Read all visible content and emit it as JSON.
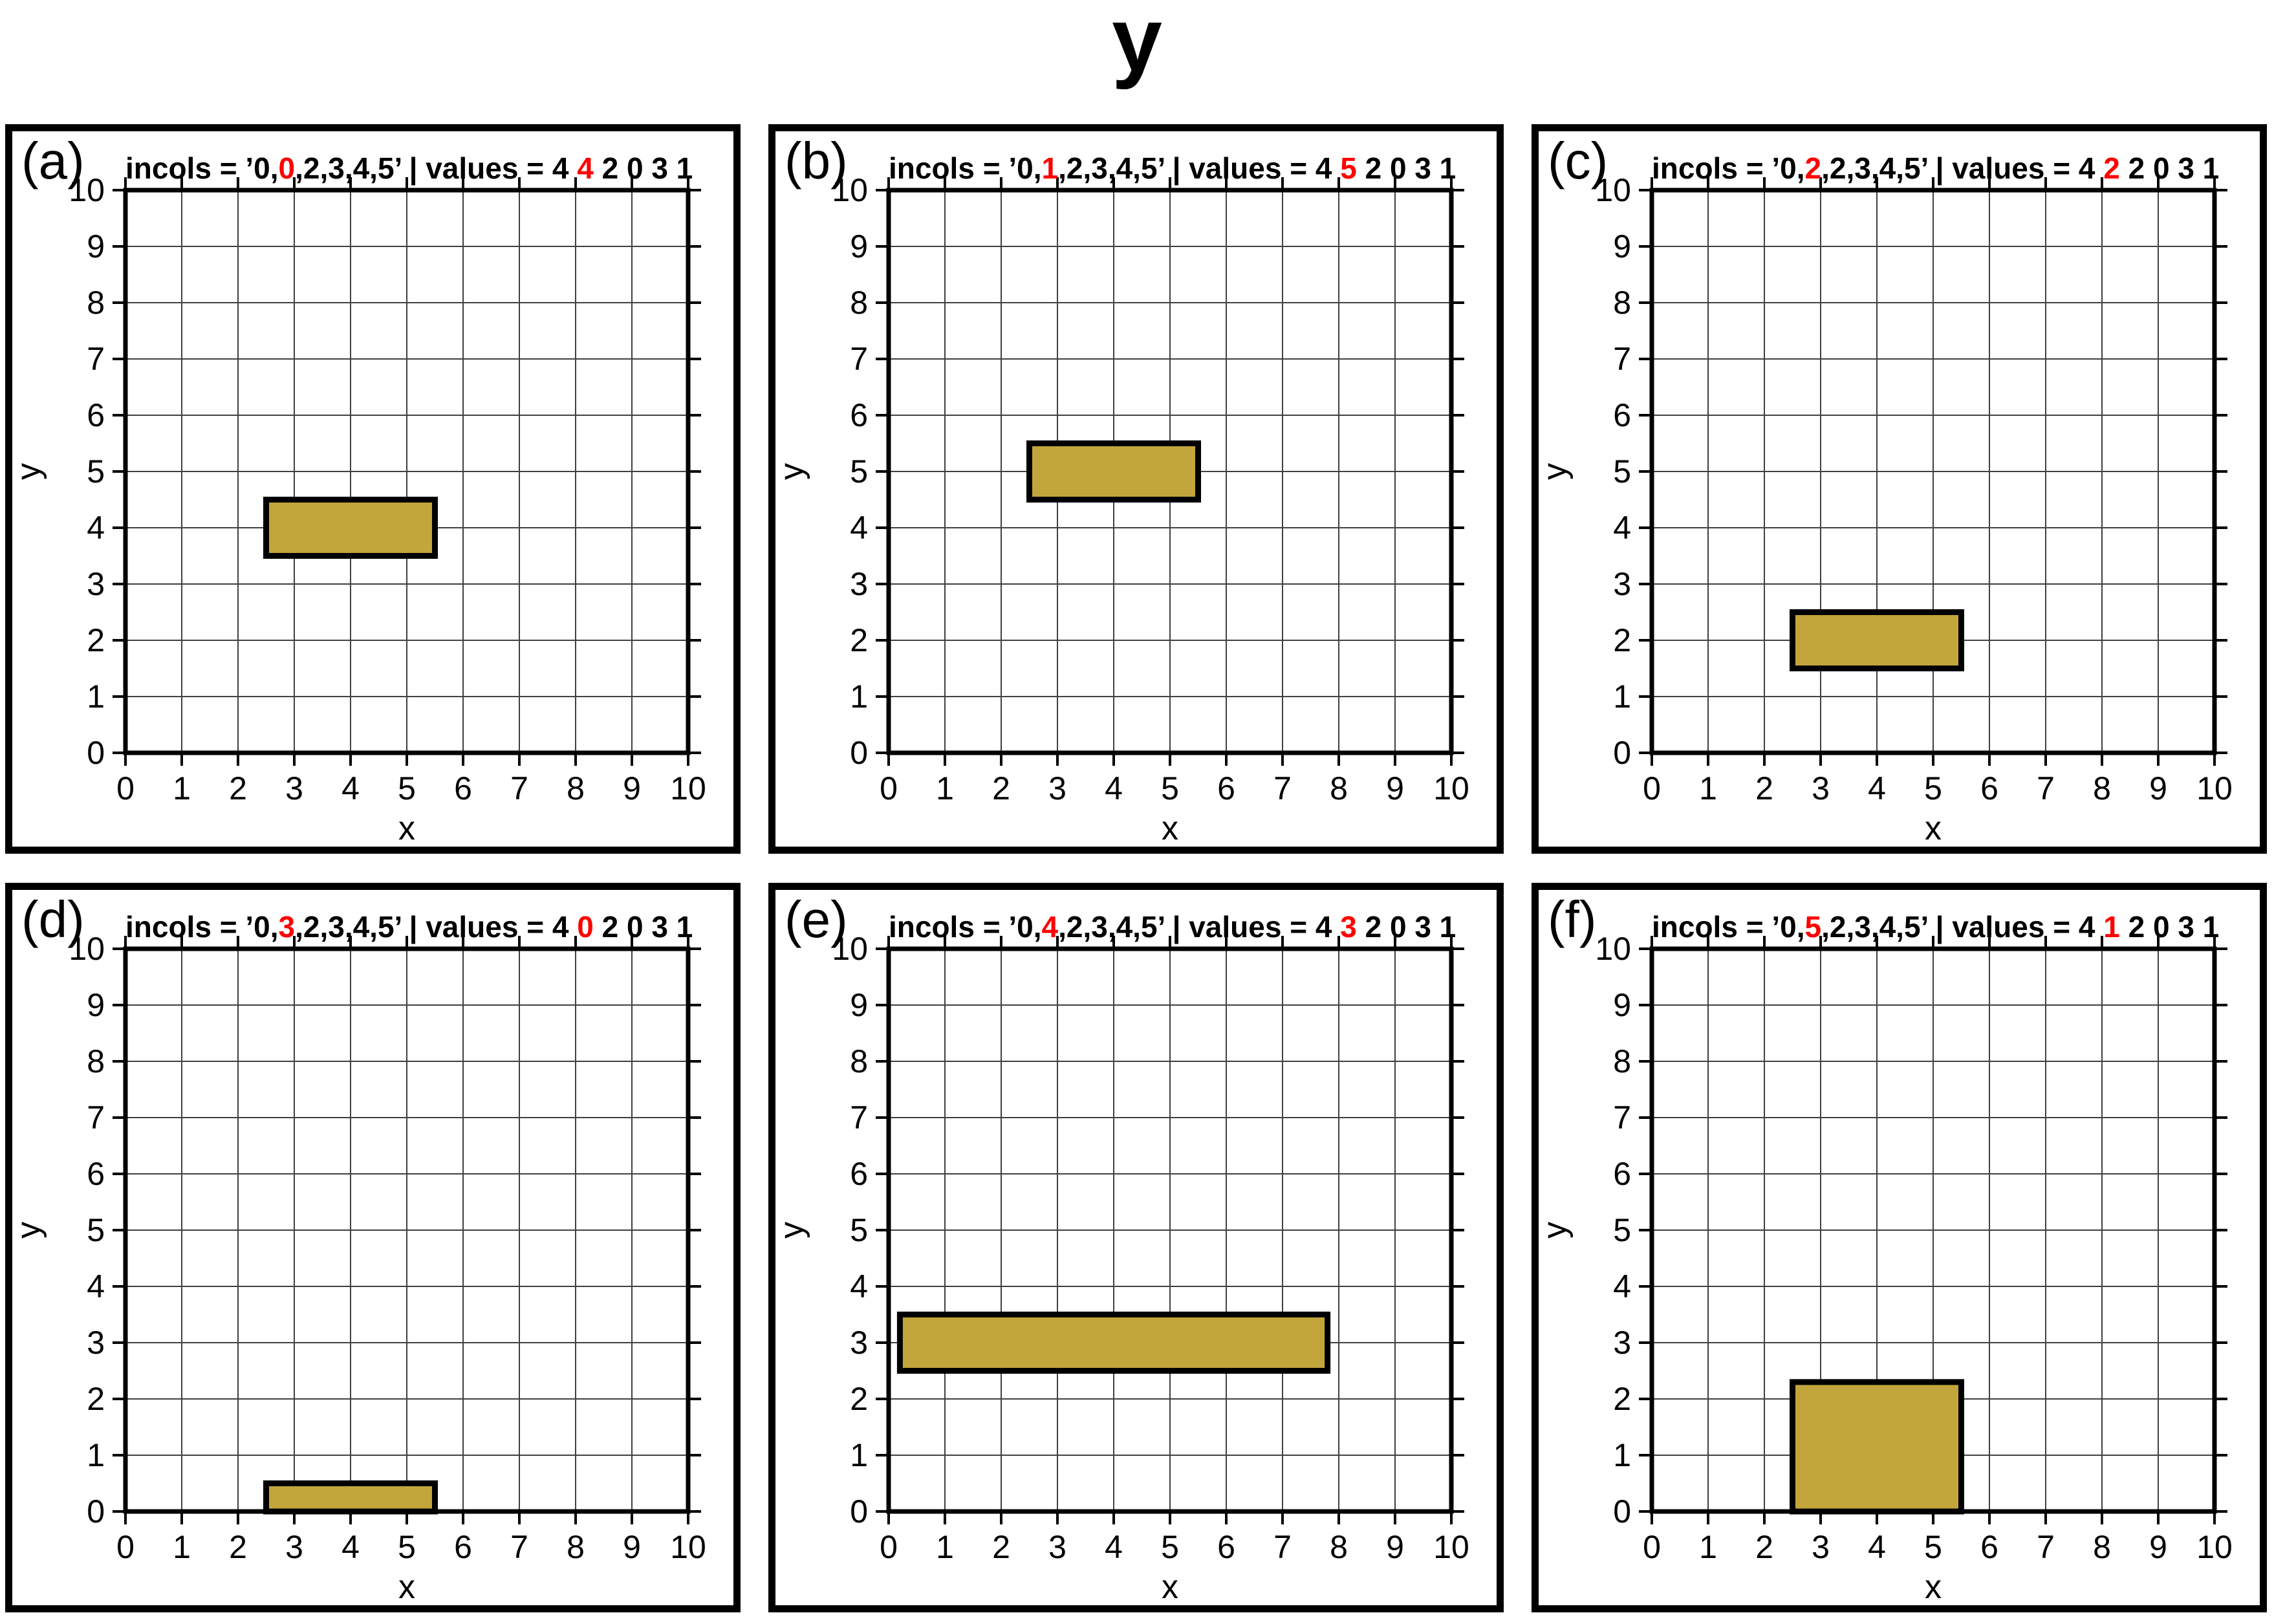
{
  "figure_title": "y",
  "colors": {
    "rect_fill": "#C2A63C",
    "rect_stroke": "#000000",
    "highlight_red": "#FF0000",
    "grid": "#404040",
    "frame": "#000000"
  },
  "axes": {
    "xlabel": "x",
    "ylabel": "y",
    "xlim": [
      0,
      10
    ],
    "ylim": [
      0,
      10
    ],
    "xticks": [
      0,
      1,
      2,
      3,
      4,
      5,
      6,
      7,
      8,
      9,
      10
    ],
    "yticks": [
      0,
      1,
      2,
      3,
      4,
      5,
      6,
      7,
      8,
      9,
      10
    ]
  },
  "panels": [
    {
      "label": "(a)",
      "title": {
        "pre": "incols = ’0,",
        "red1": "0",
        "mid": ",2,3,4,5’ | values = 4 ",
        "red2": "4",
        "post": " 2 0 3 1"
      }
    },
    {
      "label": "(b)",
      "title": {
        "pre": "incols = ’0,",
        "red1": "1",
        "mid": ",2,3,4,5’ | values = 4 ",
        "red2": "5",
        "post": " 2 0 3 1"
      }
    },
    {
      "label": "(c)",
      "title": {
        "pre": "incols = ’0,",
        "red1": "2",
        "mid": ",2,3,4,5’ | values = 4 ",
        "red2": "2",
        "post": " 2 0 3 1"
      }
    },
    {
      "label": "(d)",
      "title": {
        "pre": "incols = ’0,",
        "red1": "3",
        "mid": ",2,3,4,5’ | values = 4 ",
        "red2": "0",
        "post": " 2 0 3 1"
      }
    },
    {
      "label": "(e)",
      "title": {
        "pre": "incols = ’0,",
        "red1": "4",
        "mid": ",2,3,4,5’ | values = 4 ",
        "red2": "3",
        "post": " 2 0 3 1"
      }
    },
    {
      "label": "(f)",
      "title": {
        "pre": "incols = ’0,",
        "red1": "5",
        "mid": ",2,3,4,5’ | values = 4 ",
        "red2": "1",
        "post": " 2 0 3 1"
      }
    }
  ],
  "chart_data": [
    {
      "type": "bar",
      "panel": "a",
      "incols": "0,0,2,3,4,5",
      "values": [
        4,
        4,
        2,
        0,
        3,
        1
      ],
      "red_incol": "0",
      "red_value": 4,
      "rect_x": [
        2.5,
        5.5
      ],
      "rect_y": [
        3.5,
        4.5
      ],
      "xlabel": "x",
      "ylabel": "y",
      "xlim": [
        0,
        10
      ],
      "ylim": [
        0,
        10
      ]
    },
    {
      "type": "bar",
      "panel": "b",
      "incols": "0,1,2,3,4,5",
      "values": [
        4,
        5,
        2,
        0,
        3,
        1
      ],
      "red_incol": "1",
      "red_value": 5,
      "rect_x": [
        2.5,
        5.5
      ],
      "rect_y": [
        4.5,
        5.5
      ],
      "xlabel": "x",
      "ylabel": "y",
      "xlim": [
        0,
        10
      ],
      "ylim": [
        0,
        10
      ]
    },
    {
      "type": "bar",
      "panel": "c",
      "incols": "0,2,2,3,4,5",
      "values": [
        4,
        2,
        2,
        0,
        3,
        1
      ],
      "red_incol": "2",
      "red_value": 2,
      "rect_x": [
        2.5,
        5.5
      ],
      "rect_y": [
        1.5,
        2.5
      ],
      "xlabel": "x",
      "ylabel": "y",
      "xlim": [
        0,
        10
      ],
      "ylim": [
        0,
        10
      ]
    },
    {
      "type": "bar",
      "panel": "d",
      "incols": "0,3,2,3,4,5",
      "values": [
        4,
        0,
        2,
        0,
        3,
        1
      ],
      "red_incol": "3",
      "red_value": 0,
      "rect_x": [
        2.5,
        5.5
      ],
      "rect_y": [
        0,
        0.5
      ],
      "xlabel": "x",
      "ylabel": "y",
      "xlim": [
        0,
        10
      ],
      "ylim": [
        0,
        10
      ]
    },
    {
      "type": "bar",
      "panel": "e",
      "incols": "0,4,2,3,4,5",
      "values": [
        4,
        3,
        2,
        0,
        3,
        1
      ],
      "red_incol": "4",
      "red_value": 3,
      "rect_x": [
        0.2,
        7.8
      ],
      "rect_y": [
        2.5,
        3.5
      ],
      "xlabel": "x",
      "ylabel": "y",
      "xlim": [
        0,
        10
      ],
      "ylim": [
        0,
        10
      ]
    },
    {
      "type": "bar",
      "panel": "f",
      "incols": "0,5,2,3,4,5",
      "values": [
        4,
        1,
        2,
        0,
        3,
        1
      ],
      "red_incol": "5",
      "red_value": 1,
      "rect_x": [
        2.5,
        5.5
      ],
      "rect_y": [
        0,
        2.3
      ],
      "xlabel": "x",
      "ylabel": "y",
      "xlim": [
        0,
        10
      ],
      "ylim": [
        0,
        10
      ]
    }
  ]
}
